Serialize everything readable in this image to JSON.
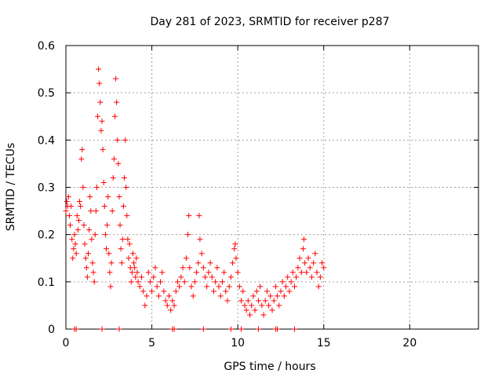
{
  "chart_data": {
    "type": "scatter",
    "title": "Day 281 of 2023, SRMTID for receiver p287",
    "xlabel": "GPS time / hours",
    "ylabel": "SRMTID / TECUs",
    "xlim": [
      0,
      24
    ],
    "ylim": [
      0,
      0.6
    ],
    "xticks": [
      0,
      5,
      10,
      15,
      20
    ],
    "yticks": [
      0,
      0.1,
      0.2,
      0.3,
      0.4,
      0.5,
      0.6
    ],
    "grid": true,
    "series": [
      {
        "name": "p287",
        "color": "#ff0000",
        "marker": "plus",
        "points": [
          [
            0.0,
            0.25
          ],
          [
            0.05,
            0.27
          ],
          [
            0.1,
            0.26
          ],
          [
            0.15,
            0.28
          ],
          [
            0.2,
            0.24
          ],
          [
            0.25,
            0.22
          ],
          [
            0.3,
            0.26
          ],
          [
            0.35,
            0.19
          ],
          [
            0.4,
            0.15
          ],
          [
            0.45,
            0.17
          ],
          [
            0.5,
            0.2
          ],
          [
            0.55,
            0.18
          ],
          [
            0.6,
            0.16
          ],
          [
            0.65,
            0.24
          ],
          [
            0.7,
            0.21
          ],
          [
            0.75,
            0.23
          ],
          [
            0.8,
            0.27
          ],
          [
            0.85,
            0.26
          ],
          [
            0.9,
            0.36
          ],
          [
            0.95,
            0.38
          ],
          [
            1.0,
            0.3
          ],
          [
            1.05,
            0.22
          ],
          [
            1.1,
            0.18
          ],
          [
            1.15,
            0.15
          ],
          [
            1.2,
            0.13
          ],
          [
            1.25,
            0.11
          ],
          [
            1.3,
            0.16
          ],
          [
            1.35,
            0.21
          ],
          [
            1.4,
            0.28
          ],
          [
            1.45,
            0.25
          ],
          [
            1.5,
            0.19
          ],
          [
            1.55,
            0.14
          ],
          [
            1.6,
            0.12
          ],
          [
            1.65,
            0.1
          ],
          [
            1.7,
            0.2
          ],
          [
            1.75,
            0.25
          ],
          [
            1.8,
            0.3
          ],
          [
            1.85,
            0.45
          ],
          [
            1.9,
            0.55
          ],
          [
            1.95,
            0.52
          ],
          [
            2.0,
            0.48
          ],
          [
            2.05,
            0.42
          ],
          [
            2.1,
            0.44
          ],
          [
            2.15,
            0.38
          ],
          [
            2.2,
            0.31
          ],
          [
            2.25,
            0.26
          ],
          [
            2.3,
            0.2
          ],
          [
            2.35,
            0.17
          ],
          [
            2.4,
            0.22
          ],
          [
            2.45,
            0.28
          ],
          [
            2.5,
            0.16
          ],
          [
            2.55,
            0.12
          ],
          [
            2.6,
            0.09
          ],
          [
            2.65,
            0.14
          ],
          [
            2.7,
            0.25
          ],
          [
            2.75,
            0.32
          ],
          [
            2.8,
            0.36
          ],
          [
            2.85,
            0.45
          ],
          [
            2.9,
            0.53
          ],
          [
            2.95,
            0.48
          ],
          [
            3.0,
            0.4
          ],
          [
            3.05,
            0.35
          ],
          [
            3.1,
            0.28
          ],
          [
            3.15,
            0.22
          ],
          [
            3.2,
            0.17
          ],
          [
            3.25,
            0.14
          ],
          [
            3.3,
            0.19
          ],
          [
            3.35,
            0.26
          ],
          [
            3.4,
            0.32
          ],
          [
            3.45,
            0.4
          ],
          [
            3.5,
            0.3
          ],
          [
            3.55,
            0.24
          ],
          [
            3.6,
            0.19
          ],
          [
            3.65,
            0.15
          ],
          [
            3.7,
            0.18
          ],
          [
            3.75,
            0.13
          ],
          [
            3.8,
            0.1
          ],
          [
            3.85,
            0.12
          ],
          [
            3.9,
            0.16
          ],
          [
            3.95,
            0.14
          ],
          [
            4.0,
            0.13
          ],
          [
            4.05,
            0.11
          ],
          [
            4.1,
            0.15
          ],
          [
            4.15,
            0.12
          ],
          [
            4.2,
            0.1
          ],
          [
            4.3,
            0.09
          ],
          [
            4.4,
            0.11
          ],
          [
            4.5,
            0.08
          ],
          [
            4.6,
            0.05
          ],
          [
            4.7,
            0.07
          ],
          [
            4.8,
            0.12
          ],
          [
            4.9,
            0.1
          ],
          [
            5.0,
            0.08
          ],
          [
            5.1,
            0.11
          ],
          [
            5.2,
            0.13
          ],
          [
            5.3,
            0.09
          ],
          [
            5.4,
            0.07
          ],
          [
            5.5,
            0.1
          ],
          [
            5.6,
            0.12
          ],
          [
            5.7,
            0.08
          ],
          [
            5.8,
            0.06
          ],
          [
            5.9,
            0.05
          ],
          [
            6.0,
            0.07
          ],
          [
            6.1,
            0.04
          ],
          [
            6.2,
            0.06
          ],
          [
            6.3,
            0.05
          ],
          [
            6.4,
            0.08
          ],
          [
            6.5,
            0.1
          ],
          [
            6.6,
            0.09
          ],
          [
            6.7,
            0.11
          ],
          [
            6.8,
            0.13
          ],
          [
            6.9,
            0.1
          ],
          [
            7.0,
            0.15
          ],
          [
            7.1,
            0.2
          ],
          [
            7.15,
            0.24
          ],
          [
            7.2,
            0.13
          ],
          [
            7.3,
            0.09
          ],
          [
            7.4,
            0.07
          ],
          [
            7.5,
            0.1
          ],
          [
            7.6,
            0.12
          ],
          [
            7.7,
            0.14
          ],
          [
            7.75,
            0.24
          ],
          [
            7.8,
            0.19
          ],
          [
            7.9,
            0.16
          ],
          [
            8.0,
            0.13
          ],
          [
            8.1,
            0.11
          ],
          [
            8.2,
            0.09
          ],
          [
            8.3,
            0.12
          ],
          [
            8.4,
            0.14
          ],
          [
            8.5,
            0.11
          ],
          [
            8.6,
            0.08
          ],
          [
            8.7,
            0.1
          ],
          [
            8.8,
            0.13
          ],
          [
            8.9,
            0.09
          ],
          [
            9.0,
            0.07
          ],
          [
            9.1,
            0.1
          ],
          [
            9.2,
            0.12
          ],
          [
            9.3,
            0.08
          ],
          [
            9.4,
            0.06
          ],
          [
            9.5,
            0.09
          ],
          [
            9.6,
            0.11
          ],
          [
            9.7,
            0.14
          ],
          [
            9.8,
            0.17
          ],
          [
            9.85,
            0.18
          ],
          [
            9.9,
            0.15
          ],
          [
            10.0,
            0.12
          ],
          [
            10.1,
            0.09
          ],
          [
            10.2,
            0.06
          ],
          [
            10.3,
            0.08
          ],
          [
            10.4,
            0.05
          ],
          [
            10.5,
            0.04
          ],
          [
            10.6,
            0.06
          ],
          [
            10.7,
            0.03
          ],
          [
            10.8,
            0.05
          ],
          [
            10.9,
            0.07
          ],
          [
            11.0,
            0.04
          ],
          [
            11.1,
            0.08
          ],
          [
            11.2,
            0.06
          ],
          [
            11.3,
            0.09
          ],
          [
            11.4,
            0.05
          ],
          [
            11.5,
            0.03
          ],
          [
            11.6,
            0.06
          ],
          [
            11.7,
            0.08
          ],
          [
            11.8,
            0.05
          ],
          [
            11.9,
            0.07
          ],
          [
            12.0,
            0.04
          ],
          [
            12.1,
            0.06
          ],
          [
            12.2,
            0.09
          ],
          [
            12.3,
            0.07
          ],
          [
            12.4,
            0.05
          ],
          [
            12.5,
            0.08
          ],
          [
            12.6,
            0.1
          ],
          [
            12.7,
            0.07
          ],
          [
            12.8,
            0.09
          ],
          [
            12.9,
            0.11
          ],
          [
            13.0,
            0.08
          ],
          [
            13.1,
            0.1
          ],
          [
            13.2,
            0.12
          ],
          [
            13.3,
            0.09
          ],
          [
            13.4,
            0.11
          ],
          [
            13.5,
            0.13
          ],
          [
            13.6,
            0.15
          ],
          [
            13.7,
            0.12
          ],
          [
            13.8,
            0.17
          ],
          [
            13.85,
            0.19
          ],
          [
            13.9,
            0.14
          ],
          [
            14.0,
            0.12
          ],
          [
            14.1,
            0.15
          ],
          [
            14.2,
            0.13
          ],
          [
            14.3,
            0.11
          ],
          [
            14.4,
            0.14
          ],
          [
            14.5,
            0.16
          ],
          [
            14.6,
            0.12
          ],
          [
            14.7,
            0.09
          ],
          [
            14.8,
            0.11
          ],
          [
            14.9,
            0.14
          ],
          [
            15.0,
            0.13
          ],
          [
            0.5,
            0.0
          ],
          [
            0.6,
            0.0
          ],
          [
            2.1,
            0.0
          ],
          [
            3.1,
            0.0
          ],
          [
            6.2,
            0.0
          ],
          [
            6.3,
            0.0
          ],
          [
            8.0,
            0.0
          ],
          [
            9.6,
            0.0
          ],
          [
            10.2,
            0.0
          ],
          [
            11.2,
            0.0
          ],
          [
            12.2,
            0.0
          ],
          [
            12.3,
            0.0
          ],
          [
            13.3,
            0.0
          ]
        ]
      }
    ]
  }
}
